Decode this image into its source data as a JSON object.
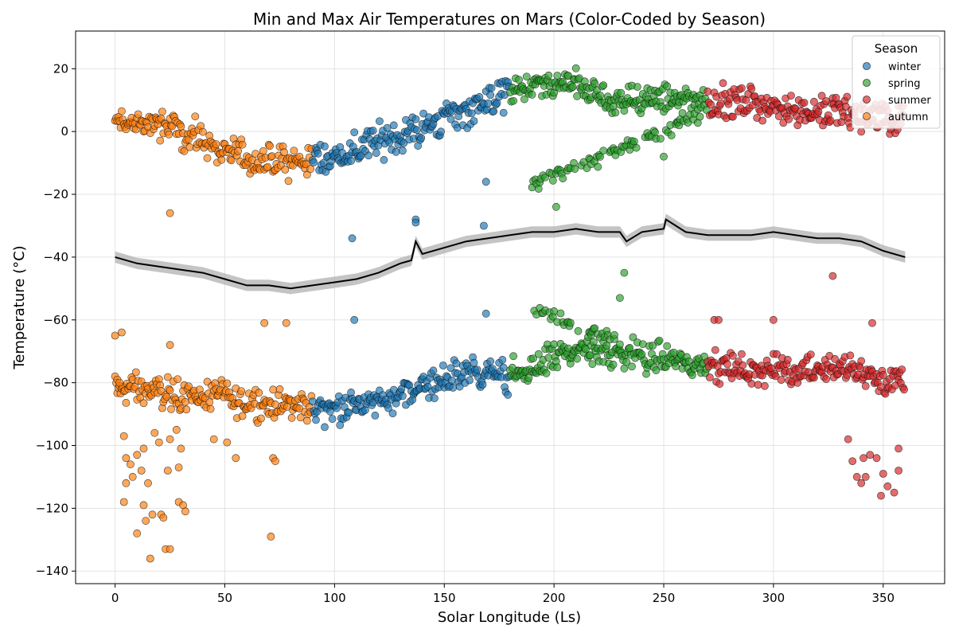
{
  "chart_data": {
    "type": "scatter",
    "title": "Min and Max Air Temperatures on Mars (Color-Coded by Season)",
    "xlabel": "Solar Longitude (Ls)",
    "ylabel": "Temperature (°C)",
    "xlim": [
      -18,
      378
    ],
    "ylim": [
      -144,
      32
    ],
    "xticks": [
      0,
      50,
      100,
      150,
      200,
      250,
      300,
      350
    ],
    "yticks": [
      -140,
      -120,
      -100,
      -80,
      -60,
      -40,
      -20,
      0,
      20
    ],
    "grid": true,
    "legend": {
      "title": "Season",
      "position": "top-right",
      "entries": [
        "winter",
        "spring",
        "summer",
        "autumn"
      ]
    },
    "colors": {
      "winter": "#1f77b4",
      "spring": "#2ca02c",
      "summer": "#d62728",
      "autumn": "#ff7f0e",
      "mean_line": "#000000",
      "band": "#b0b0b0"
    },
    "seasons": [
      {
        "name": "winter",
        "ls_range": [
          90,
          180
        ]
      },
      {
        "name": "spring",
        "ls_range": [
          180,
          270
        ]
      },
      {
        "name": "summer",
        "ls_range": [
          270,
          360
        ]
      },
      {
        "name": "autumn",
        "ls_range": [
          0,
          90
        ]
      }
    ],
    "max_temp_trend": {
      "x": [
        0,
        10,
        20,
        30,
        40,
        50,
        60,
        70,
        80,
        90,
        100,
        110,
        120,
        130,
        140,
        150,
        160,
        170,
        180,
        190,
        200,
        210,
        220,
        230,
        240,
        250,
        260,
        270,
        280,
        290,
        300,
        310,
        320,
        330,
        340,
        350,
        360
      ],
      "y": [
        3,
        3,
        2,
        0,
        -3,
        -6,
        -9,
        -10,
        -10,
        -9,
        -8,
        -6,
        -3,
        -1,
        1,
        4,
        7,
        10,
        13,
        14,
        15,
        15,
        12,
        10,
        10,
        10,
        10,
        10,
        9,
        9,
        8,
        7,
        6,
        6,
        5,
        4,
        3
      ]
    },
    "min_temp_trend": {
      "x": [
        0,
        10,
        20,
        30,
        40,
        50,
        60,
        70,
        80,
        90,
        100,
        110,
        120,
        130,
        140,
        150,
        160,
        170,
        180,
        190,
        200,
        210,
        220,
        230,
        240,
        250,
        260,
        270,
        280,
        290,
        300,
        310,
        320,
        330,
        340,
        350,
        360
      ],
      "y": [
        -82,
        -82,
        -83,
        -84,
        -84,
        -85,
        -86,
        -86,
        -87,
        -88,
        -88,
        -87,
        -86,
        -84,
        -81,
        -79,
        -77,
        -77,
        -78,
        -76,
        -72,
        -70,
        -70,
        -70,
        -71,
        -72,
        -73,
        -74,
        -75,
        -76,
        -76,
        -76,
        -75,
        -75,
        -77,
        -79,
        -80
      ]
    },
    "mean_line": {
      "x": [
        0,
        10,
        20,
        30,
        40,
        50,
        60,
        70,
        80,
        90,
        100,
        110,
        120,
        130,
        135,
        137,
        140,
        150,
        160,
        170,
        180,
        190,
        200,
        210,
        220,
        230,
        233,
        240,
        250,
        251,
        260,
        270,
        280,
        290,
        300,
        310,
        320,
        330,
        340,
        350,
        360
      ],
      "y": [
        -40,
        -42,
        -43,
        -44,
        -45,
        -47,
        -49,
        -49,
        -50,
        -49,
        -48,
        -47,
        -45,
        -42,
        -41,
        -35,
        -39,
        -37,
        -35,
        -34,
        -33,
        -32,
        -32,
        -31,
        -32,
        -32,
        -35,
        -32,
        -31,
        -28,
        -32,
        -33,
        -33,
        -33,
        -32,
        -33,
        -34,
        -34,
        -35,
        -38,
        -40
      ]
    },
    "mean_band_halfwidth": 1.8,
    "outliers": {
      "autumn": [
        [
          0,
          -65
        ],
        [
          3,
          -64
        ],
        [
          1,
          -79
        ],
        [
          2,
          -80
        ],
        [
          4,
          -97
        ],
        [
          5,
          -104
        ],
        [
          4,
          -118
        ],
        [
          5,
          -112
        ],
        [
          7,
          -106
        ],
        [
          8,
          -110
        ],
        [
          10,
          -103
        ],
        [
          10,
          -128
        ],
        [
          12,
          -108
        ],
        [
          13,
          -101
        ],
        [
          13,
          -119
        ],
        [
          14,
          -124
        ],
        [
          15,
          -112
        ],
        [
          16,
          -136
        ],
        [
          17,
          -122
        ],
        [
          18,
          -96
        ],
        [
          20,
          -99
        ],
        [
          21,
          -122
        ],
        [
          22,
          -123
        ],
        [
          23,
          -133
        ],
        [
          24,
          -108
        ],
        [
          25,
          -133
        ],
        [
          25,
          -98
        ],
        [
          25,
          -68
        ],
        [
          28,
          -95
        ],
        [
          29,
          -107
        ],
        [
          29,
          -118
        ],
        [
          30,
          -101
        ],
        [
          31,
          -119
        ],
        [
          32,
          -121
        ],
        [
          45,
          -98
        ],
        [
          51,
          -99
        ],
        [
          55,
          -104
        ],
        [
          68,
          -61
        ],
        [
          72,
          -104
        ],
        [
          73,
          -105
        ],
        [
          71,
          -129
        ],
        [
          78,
          -61
        ],
        [
          25,
          -26
        ]
      ],
      "winter": [
        [
          108,
          -34
        ],
        [
          109,
          -60
        ],
        [
          137,
          -28
        ],
        [
          137,
          -29
        ],
        [
          168,
          -30
        ],
        [
          169,
          -16
        ],
        [
          169,
          -58
        ]
      ],
      "spring": [
        [
          201,
          -24
        ],
        [
          232,
          -45
        ],
        [
          250,
          -8
        ],
        [
          230,
          -53
        ]
      ],
      "summer": [
        [
          327,
          -46
        ],
        [
          300,
          -60
        ],
        [
          273,
          -60
        ],
        [
          275,
          -60
        ],
        [
          345,
          -61
        ],
        [
          334,
          -98
        ],
        [
          336,
          -105
        ],
        [
          338,
          -110
        ],
        [
          340,
          -112
        ],
        [
          341,
          -104
        ],
        [
          342,
          -110
        ],
        [
          344,
          -103
        ],
        [
          347,
          -104
        ],
        [
          349,
          -116
        ],
        [
          350,
          -109
        ],
        [
          352,
          -113
        ],
        [
          355,
          -115
        ],
        [
          357,
          -108
        ],
        [
          357,
          -101
        ]
      ]
    }
  }
}
